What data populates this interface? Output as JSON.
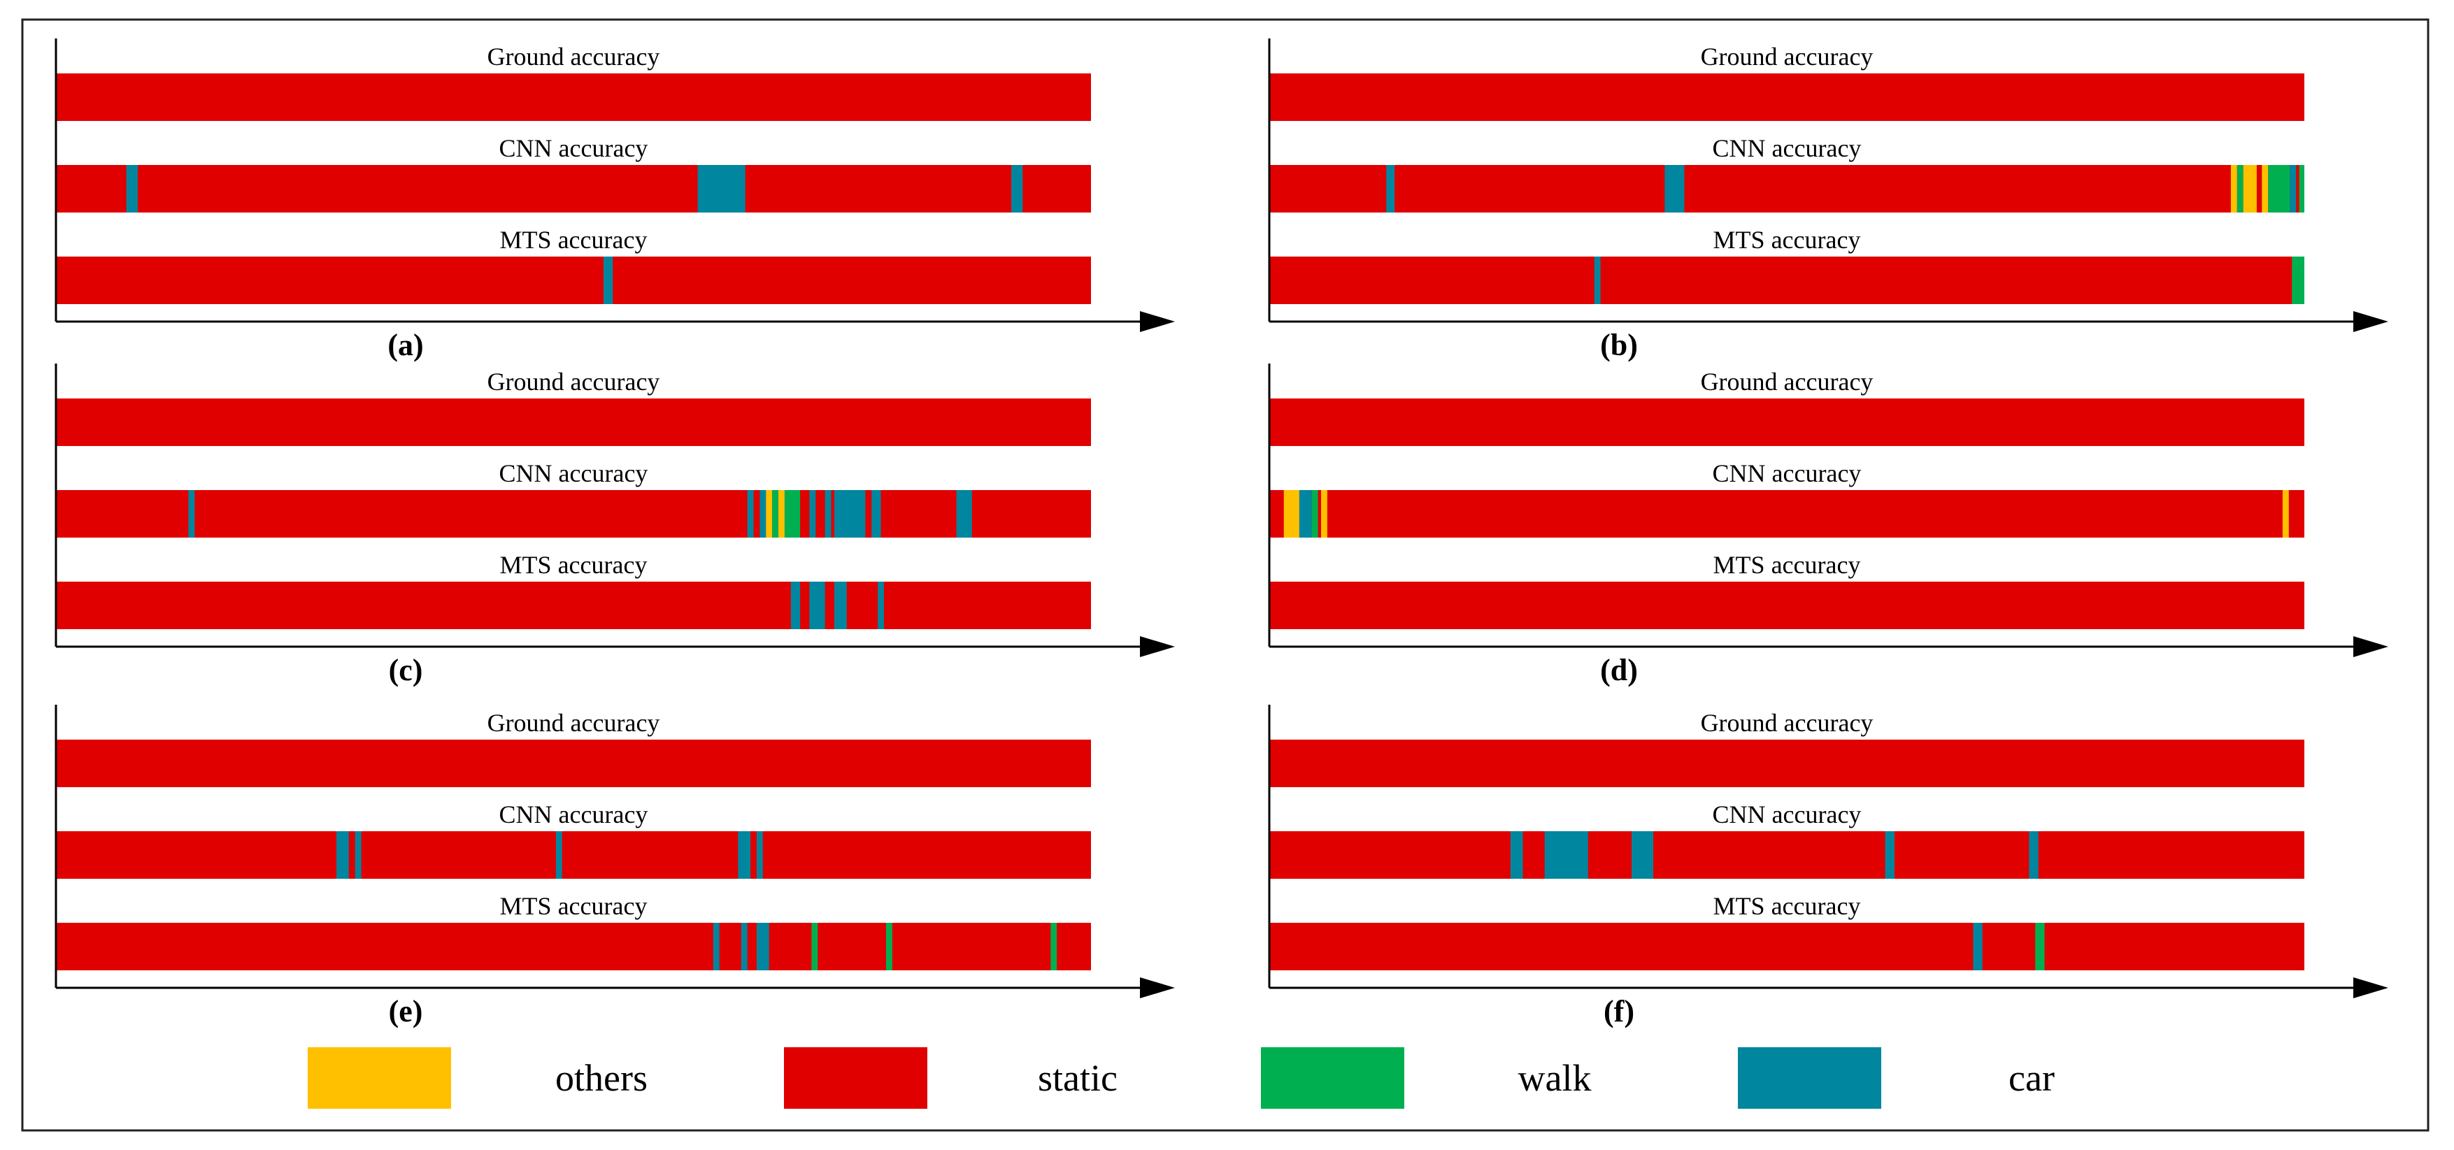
{
  "colors": {
    "others": "#FFC000",
    "static": "#E00000",
    "walk": "#00B050",
    "car": "#00869E",
    "axis": "#000000",
    "frame": "#222222"
  },
  "legend": [
    {
      "key": "others",
      "label": "others"
    },
    {
      "key": "static",
      "label": "static"
    },
    {
      "key": "walk",
      "label": "walk"
    },
    {
      "key": "car",
      "label": "car"
    }
  ],
  "chart_data": [
    {
      "type": "timeline",
      "label": "(a)",
      "rows": [
        {
          "name": "Ground accuracy",
          "segments": [
            {
              "start": 0,
              "end": 100,
              "class": "static"
            }
          ]
        },
        {
          "name": "CNN accuracy",
          "segments": [
            {
              "start": 0,
              "end": 100,
              "class": "static"
            },
            {
              "start": 6.8,
              "end": 7.9,
              "class": "car"
            },
            {
              "start": 62.0,
              "end": 66.6,
              "class": "car"
            },
            {
              "start": 92.3,
              "end": 93.4,
              "class": "car"
            }
          ]
        },
        {
          "name": "MTS accuracy",
          "segments": [
            {
              "start": 0,
              "end": 100,
              "class": "static"
            },
            {
              "start": 52.9,
              "end": 53.8,
              "class": "car"
            }
          ]
        }
      ]
    },
    {
      "type": "timeline",
      "label": "(b)",
      "rows": [
        {
          "name": "Ground accuracy",
          "segments": [
            {
              "start": 0,
              "end": 100,
              "class": "static"
            }
          ]
        },
        {
          "name": "CNN accuracy",
          "segments": [
            {
              "start": 0,
              "end": 100,
              "class": "static"
            },
            {
              "start": 11.3,
              "end": 12.1,
              "class": "car"
            },
            {
              "start": 38.2,
              "end": 40.1,
              "class": "car"
            },
            {
              "start": 92.9,
              "end": 93.5,
              "class": "others"
            },
            {
              "start": 93.5,
              "end": 94.1,
              "class": "walk"
            },
            {
              "start": 94.1,
              "end": 95.4,
              "class": "others"
            },
            {
              "start": 95.9,
              "end": 96.5,
              "class": "others"
            },
            {
              "start": 96.5,
              "end": 97.4,
              "class": "walk"
            },
            {
              "start": 97.4,
              "end": 98.6,
              "class": "walk"
            },
            {
              "start": 98.6,
              "end": 99.2,
              "class": "car"
            },
            {
              "start": 99.5,
              "end": 100,
              "class": "walk"
            }
          ]
        },
        {
          "name": "MTS accuracy",
          "segments": [
            {
              "start": 0,
              "end": 100,
              "class": "static"
            },
            {
              "start": 31.4,
              "end": 32.0,
              "class": "car"
            },
            {
              "start": 98.8,
              "end": 100,
              "class": "walk"
            }
          ]
        }
      ]
    },
    {
      "type": "timeline",
      "label": "(c)",
      "rows": [
        {
          "name": "Ground accuracy",
          "segments": [
            {
              "start": 0,
              "end": 100,
              "class": "static"
            }
          ]
        },
        {
          "name": "CNN accuracy",
          "segments": [
            {
              "start": 0,
              "end": 100,
              "class": "static"
            },
            {
              "start": 12.8,
              "end": 13.4,
              "class": "car"
            },
            {
              "start": 66.8,
              "end": 67.4,
              "class": "car"
            },
            {
              "start": 68.0,
              "end": 68.6,
              "class": "car"
            },
            {
              "start": 68.6,
              "end": 69.2,
              "class": "others"
            },
            {
              "start": 69.2,
              "end": 69.8,
              "class": "walk"
            },
            {
              "start": 69.8,
              "end": 70.4,
              "class": "others"
            },
            {
              "start": 70.4,
              "end": 71.9,
              "class": "walk"
            },
            {
              "start": 72.8,
              "end": 73.4,
              "class": "car"
            },
            {
              "start": 74.3,
              "end": 74.9,
              "class": "car"
            },
            {
              "start": 75.2,
              "end": 78.2,
              "class": "car"
            },
            {
              "start": 78.8,
              "end": 79.7,
              "class": "car"
            },
            {
              "start": 87.0,
              "end": 88.5,
              "class": "car"
            }
          ]
        },
        {
          "name": "MTS accuracy",
          "segments": [
            {
              "start": 0,
              "end": 100,
              "class": "static"
            },
            {
              "start": 71.0,
              "end": 71.9,
              "class": "car"
            },
            {
              "start": 72.8,
              "end": 74.3,
              "class": "car"
            },
            {
              "start": 75.2,
              "end": 76.4,
              "class": "car"
            },
            {
              "start": 79.4,
              "end": 80.0,
              "class": "car"
            }
          ]
        }
      ]
    },
    {
      "type": "timeline",
      "label": "(d)",
      "rows": [
        {
          "name": "Ground accuracy",
          "segments": [
            {
              "start": 0,
              "end": 100,
              "class": "static"
            }
          ]
        },
        {
          "name": "CNN accuracy",
          "segments": [
            {
              "start": 0,
              "end": 100,
              "class": "static"
            },
            {
              "start": 1.4,
              "end": 2.9,
              "class": "others"
            },
            {
              "start": 2.9,
              "end": 4.1,
              "class": "car"
            },
            {
              "start": 4.1,
              "end": 4.7,
              "class": "walk"
            },
            {
              "start": 5.0,
              "end": 5.6,
              "class": "others"
            },
            {
              "start": 97.9,
              "end": 98.5,
              "class": "others"
            }
          ]
        },
        {
          "name": "MTS accuracy",
          "segments": [
            {
              "start": 0,
              "end": 100,
              "class": "static"
            }
          ]
        }
      ]
    },
    {
      "type": "timeline",
      "label": "(e)",
      "rows": [
        {
          "name": "Ground accuracy",
          "segments": [
            {
              "start": 0,
              "end": 100,
              "class": "static"
            }
          ]
        },
        {
          "name": "CNN accuracy",
          "segments": [
            {
              "start": 0,
              "end": 100,
              "class": "static"
            },
            {
              "start": 27.1,
              "end": 28.3,
              "class": "car"
            },
            {
              "start": 28.9,
              "end": 29.5,
              "class": "car"
            },
            {
              "start": 48.3,
              "end": 48.9,
              "class": "car"
            },
            {
              "start": 65.9,
              "end": 67.1,
              "class": "car"
            },
            {
              "start": 67.7,
              "end": 68.3,
              "class": "car"
            }
          ]
        },
        {
          "name": "MTS accuracy",
          "segments": [
            {
              "start": 0,
              "end": 100,
              "class": "static"
            },
            {
              "start": 63.5,
              "end": 64.1,
              "class": "car"
            },
            {
              "start": 66.2,
              "end": 66.8,
              "class": "car"
            },
            {
              "start": 67.7,
              "end": 68.9,
              "class": "car"
            },
            {
              "start": 73.0,
              "end": 73.6,
              "class": "walk"
            },
            {
              "start": 80.2,
              "end": 80.8,
              "class": "walk"
            },
            {
              "start": 96.1,
              "end": 96.7,
              "class": "walk"
            }
          ]
        }
      ]
    },
    {
      "type": "timeline",
      "label": "(f)",
      "rows": [
        {
          "name": "Ground accuracy",
          "segments": [
            {
              "start": 0,
              "end": 100,
              "class": "static"
            }
          ]
        },
        {
          "name": "CNN accuracy",
          "segments": [
            {
              "start": 0,
              "end": 100,
              "class": "static"
            },
            {
              "start": 23.3,
              "end": 24.5,
              "class": "car"
            },
            {
              "start": 26.6,
              "end": 30.8,
              "class": "car"
            },
            {
              "start": 35.0,
              "end": 37.1,
              "class": "car"
            },
            {
              "start": 59.5,
              "end": 60.4,
              "class": "car"
            },
            {
              "start": 73.4,
              "end": 74.3,
              "class": "car"
            }
          ]
        },
        {
          "name": "MTS accuracy",
          "segments": [
            {
              "start": 0,
              "end": 100,
              "class": "static"
            },
            {
              "start": 68.0,
              "end": 68.9,
              "class": "car"
            },
            {
              "start": 74.0,
              "end": 74.9,
              "class": "walk"
            }
          ]
        }
      ]
    }
  ]
}
